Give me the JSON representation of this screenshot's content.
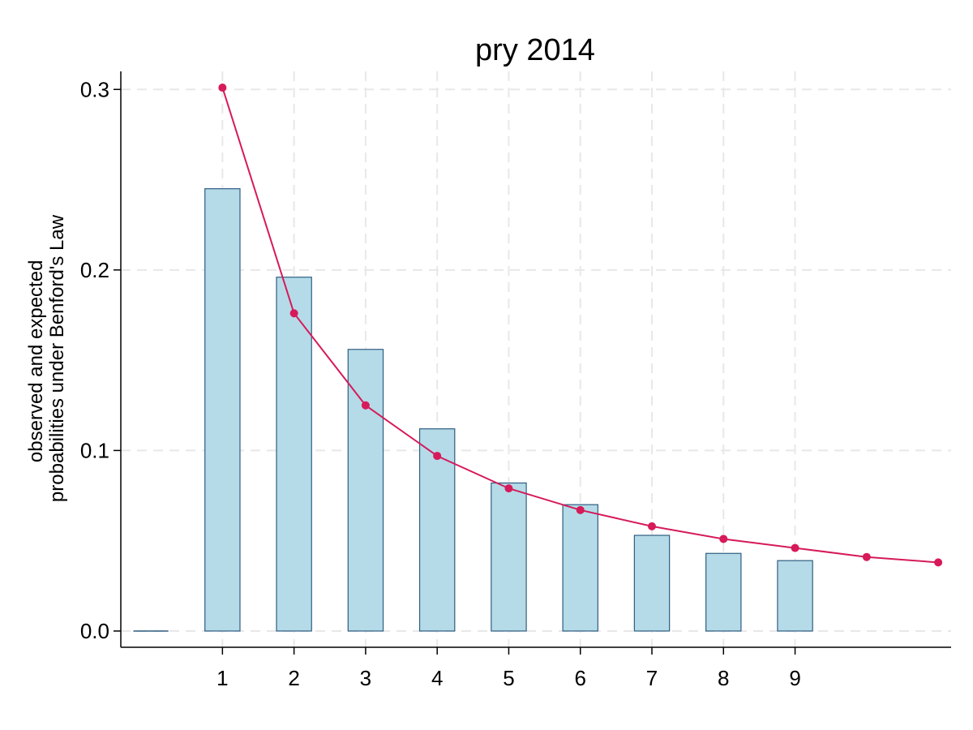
{
  "chart_data": {
    "type": "bar",
    "title": "pry 2014",
    "ylabel_lines": [
      "observed and expected",
      "probabilities under Benford's Law"
    ],
    "xlabel": "",
    "x_ticks": [
      "1",
      "2",
      "3",
      "4",
      "5",
      "6",
      "7",
      "8",
      "9"
    ],
    "y_ticks": [
      "0.0",
      "0.1",
      "0.2",
      "0.3"
    ],
    "ylim": [
      -0.009,
      0.31
    ],
    "xlim": [
      -0.42,
      11.18
    ],
    "series": [
      {
        "name": "observed",
        "kind": "bar",
        "x": [
          0,
          1,
          2,
          3,
          4,
          5,
          6,
          7,
          8,
          9
        ],
        "values": [
          0.0,
          0.245,
          0.196,
          0.156,
          0.112,
          0.082,
          0.07,
          0.053,
          0.043,
          0.039
        ]
      },
      {
        "name": "expected (Benford's Law)",
        "kind": "line",
        "x": [
          1,
          2,
          3,
          4,
          5,
          6,
          7,
          8,
          9,
          10,
          11
        ],
        "values": [
          0.301,
          0.176,
          0.125,
          0.097,
          0.079,
          0.067,
          0.058,
          0.051,
          0.046,
          0.041,
          0.038
        ]
      }
    ],
    "colors": {
      "bar_fill": "#b5dbe8",
      "bar_edge": "#2f5d80",
      "line": "#d61a5a",
      "grid": "#e8e8e8"
    },
    "grid": true
  }
}
